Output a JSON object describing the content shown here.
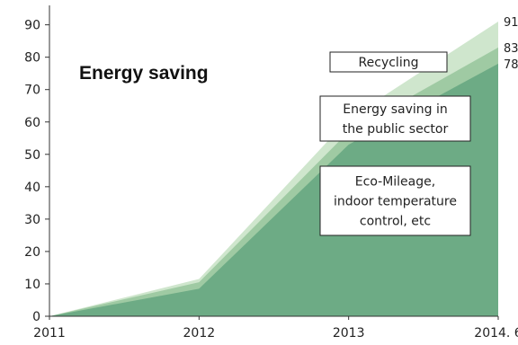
{
  "chart_data": {
    "type": "area",
    "title": "Energy saving",
    "x_labels": [
      "2011",
      "2012",
      "2013",
      "2014. 6"
    ],
    "y_ticks": [
      0,
      10,
      20,
      30,
      40,
      50,
      60,
      70,
      80,
      90
    ],
    "ylim": [
      0,
      96
    ],
    "grid": false,
    "series": [
      {
        "name": "Eco-Mileage, indoor temperature control, etc",
        "name_lines": [
          "Eco-Mileage,",
          "indoor temperature",
          "control, etc"
        ],
        "values": [
          0,
          8.5,
          53,
          78
        ],
        "color": "#6dab85"
      },
      {
        "name": "Energy saving in the public sector",
        "name_lines": [
          "Energy saving in",
          "the public sector"
        ],
        "values": [
          0,
          10.5,
          57,
          83
        ],
        "color": "#9fcaa3"
      },
      {
        "name": "Recycling",
        "name_lines": [
          "Recycling"
        ],
        "values": [
          0,
          11.5,
          61,
          91
        ],
        "color": "#cfe6cd"
      }
    ],
    "end_labels": [
      "91",
      "83",
      "78"
    ]
  }
}
